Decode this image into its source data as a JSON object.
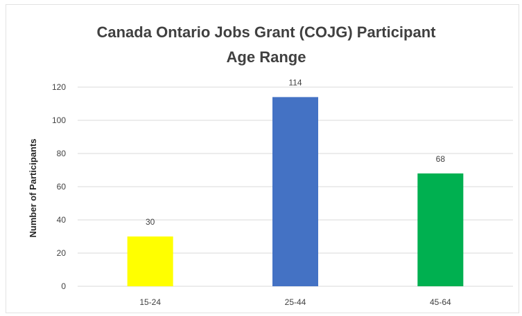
{
  "chart_data": {
    "type": "bar",
    "title_lines": [
      "Canada Ontario Jobs Grant (COJG) Participant",
      "Age Range"
    ],
    "xlabel": "",
    "ylabel": "Number of Participants",
    "categories": [
      "15-24",
      "25-44",
      "45-64"
    ],
    "values": [
      30,
      114,
      68
    ],
    "colors": [
      "#ffff00",
      "#4472c4",
      "#00b050"
    ],
    "ylim": [
      0,
      120
    ],
    "yticks": [
      0,
      20,
      40,
      60,
      80,
      100,
      120
    ],
    "grid": true,
    "legend": "none"
  }
}
